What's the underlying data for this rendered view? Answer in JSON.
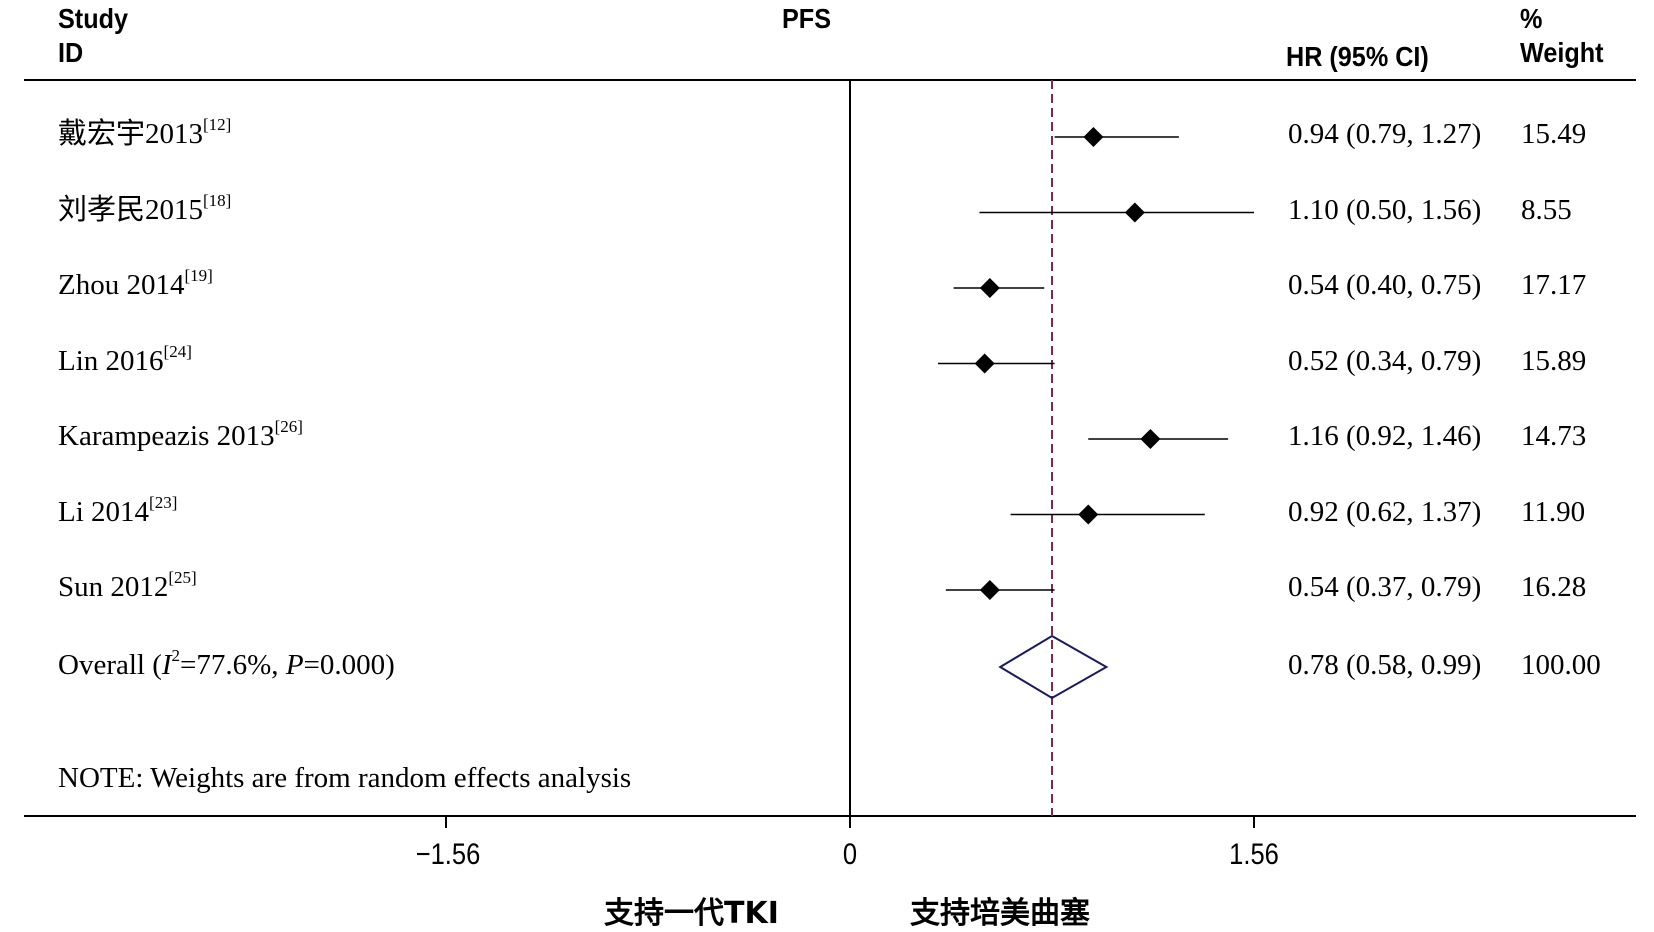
{
  "header": {
    "study_line1": "Study",
    "study_line2": "ID",
    "title": "PFS",
    "hr_label": "HR (95% CI)",
    "weight_line1": "%",
    "weight_line2": "Weight"
  },
  "chart_data": {
    "type": "forest",
    "title": "PFS",
    "effect_measure": "HR (95% CI)",
    "null_line": 0,
    "overall_line": 0.78,
    "studies": [
      {
        "name": "戴宏宇2013",
        "ref": "[12]",
        "hr": 0.94,
        "lo": 0.79,
        "hi": 1.27,
        "hr_text": "0.94 (0.79, 1.27)",
        "weight": "15.49"
      },
      {
        "name": "刘孝民2015",
        "ref": "[18]",
        "hr": 1.1,
        "lo": 0.5,
        "hi": 1.56,
        "hr_text": "1.10 (0.50, 1.56)",
        "weight": "8.55"
      },
      {
        "name": "Zhou 2014",
        "ref": "[19]",
        "hr": 0.54,
        "lo": 0.4,
        "hi": 0.75,
        "hr_text": "0.54 (0.40, 0.75)",
        "weight": "17.17"
      },
      {
        "name": "Lin 2016",
        "ref": "[24]",
        "hr": 0.52,
        "lo": 0.34,
        "hi": 0.79,
        "hr_text": "0.52 (0.34, 0.79)",
        "weight": "15.89"
      },
      {
        "name": "Karampeazis 2013",
        "ref": "[26]",
        "hr": 1.16,
        "lo": 0.92,
        "hi": 1.46,
        "hr_text": "1.16 (0.92, 1.46)",
        "weight": "14.73"
      },
      {
        "name": "Li 2014",
        "ref": "[23]",
        "hr": 0.92,
        "lo": 0.62,
        "hi": 1.37,
        "hr_text": "0.92 (0.62, 1.37)",
        "weight": "11.90"
      },
      {
        "name": "Sun 2012",
        "ref": "[25]",
        "hr": 0.54,
        "lo": 0.37,
        "hi": 0.79,
        "hr_text": "0.54 (0.37, 0.79)",
        "weight": "16.28"
      }
    ],
    "overall": {
      "label_prefix": "Overall  (",
      "i_letter": "I",
      "i_exp": "2",
      "i_val": "=77.6%, ",
      "p_letter": "P",
      "p_val": "=0.000)",
      "hr": 0.78,
      "lo": 0.58,
      "hi": 0.99,
      "hr_text": "0.78 (0.58, 0.99)",
      "weight": "100.00"
    },
    "note": "NOTE: Weights are from random effects analysis",
    "x_ticks": [
      "−1.56",
      "0",
      "1.56"
    ],
    "x_label_left": "支持一代TKI",
    "x_label_right": "支持培美曲塞",
    "colors": {
      "overall_diamond": "#1a1a5e",
      "overall_line": "#7a2a4a"
    }
  }
}
